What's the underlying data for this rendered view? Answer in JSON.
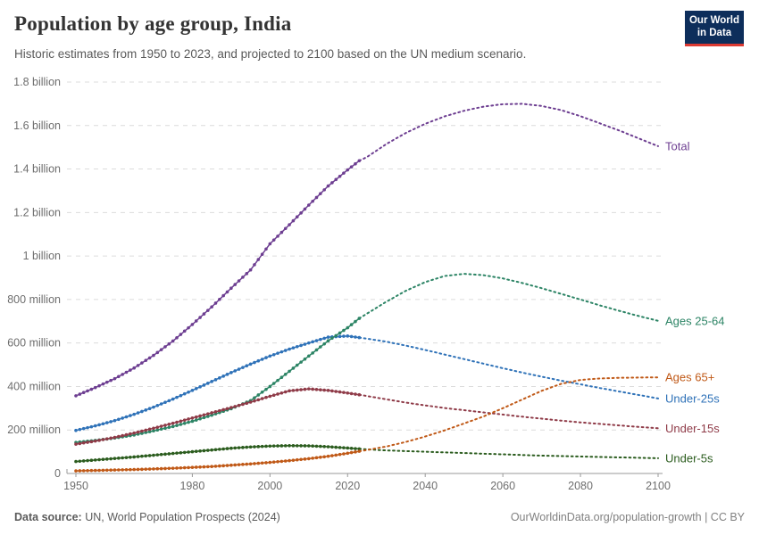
{
  "header": {
    "title": "Population by age group, India",
    "subtitle": "Historic estimates from 1950 to 2023, and projected to 2100 based on the UN medium scenario.",
    "logo_line1": "Our World",
    "logo_line2": "in Data",
    "logo_bg": "#0d2e5b",
    "logo_accent": "#dc3a32"
  },
  "footer": {
    "source_label": "Data source:",
    "source_value": " UN, World Population Prospects (2024)",
    "link": "OurWorldinData.org/population-growth | CC BY"
  },
  "chart_data": {
    "type": "line",
    "title": "Population by age group, India",
    "xlabel": "",
    "ylabel": "",
    "grid": true,
    "legend_position": "right-edge-labels",
    "historic_until": 2023,
    "projection_to": 2100,
    "xlim": [
      1950,
      2100
    ],
    "ylim_millions": [
      0,
      1800
    ],
    "xticks": [
      1950,
      1980,
      2000,
      2020,
      2040,
      2060,
      2080,
      2100
    ],
    "yticks_millions": [
      0,
      200,
      400,
      600,
      800,
      1000,
      1200,
      1400,
      1600,
      1800
    ],
    "ytick_labels": [
      "0",
      "200 million",
      "400 million",
      "600 million",
      "800 million",
      "1 billion",
      "1.2 billion",
      "1.4 billion",
      "1.6 billion",
      "1.8 billion"
    ],
    "years": [
      1950,
      1955,
      1960,
      1965,
      1970,
      1975,
      1980,
      1985,
      1990,
      1995,
      2000,
      2005,
      2010,
      2015,
      2020,
      2023,
      2025,
      2030,
      2035,
      2040,
      2045,
      2050,
      2055,
      2060,
      2065,
      2070,
      2075,
      2080,
      2085,
      2090,
      2095,
      2100
    ],
    "unit": "people (millions)",
    "series": [
      {
        "name": "Under-25s",
        "color": "#2f72b8",
        "values_millions": [
          198,
          219,
          243,
          272,
          305,
          342,
          382,
          423,
          464,
          503,
          540,
          572,
          600,
          627,
          632,
          625,
          620,
          606,
          588,
          568,
          547,
          526,
          505,
          484,
          464,
          445,
          427,
          410,
          393,
          377,
          361,
          345
        ]
      },
      {
        "name": "Ages 25-64",
        "color": "#2c8465",
        "values_millions": [
          143,
          152,
          163,
          177,
          196,
          216,
          240,
          268,
          298,
          335,
          400,
          470,
          540,
          610,
          670,
          713,
          735,
          790,
          840,
          880,
          908,
          918,
          912,
          897,
          876,
          852,
          826,
          800,
          773,
          748,
          724,
          702
        ]
      },
      {
        "name": "Under-15s",
        "color": "#8f3b48",
        "values_millions": [
          135,
          149,
          166,
          186,
          208,
          231,
          255,
          279,
          303,
          328,
          355,
          380,
          389,
          382,
          370,
          362,
          356,
          341,
          326,
          313,
          301,
          291,
          281,
          271,
          261,
          252,
          243,
          235,
          228,
          221,
          214,
          208
        ]
      },
      {
        "name": "Under-5s",
        "color": "#2b5c1e",
        "values_millions": [
          55,
          62,
          69,
          76,
          84,
          92,
          100,
          108,
          116,
          122,
          126,
          128,
          127,
          123,
          117,
          113,
          111,
          106,
          103,
          100,
          97,
          94,
          91,
          88,
          85,
          82,
          80,
          78,
          76,
          74,
          72,
          70
        ]
      },
      {
        "name": "Ages 65+",
        "color": "#c05917",
        "values_millions": [
          12,
          14,
          16,
          18,
          21,
          24,
          28,
          32,
          38,
          44,
          51,
          59,
          68,
          79,
          93,
          102,
          108,
          124,
          145,
          170,
          198,
          230,
          262,
          300,
          340,
          380,
          412,
          430,
          437,
          440,
          441,
          442
        ]
      },
      {
        "name": "Total",
        "color": "#6d3e91",
        "values_millions": [
          357,
          395,
          436,
          485,
          543,
          609,
          685,
          766,
          852,
          936,
          1056,
          1144,
          1234,
          1322,
          1396,
          1438,
          1455,
          1515,
          1566,
          1608,
          1642,
          1668,
          1687,
          1698,
          1700,
          1690,
          1671,
          1643,
          1610,
          1577,
          1541,
          1505
        ]
      }
    ],
    "axis_color": "#999999",
    "gridline_color": "#dcdcdc",
    "tick_label_color": "#6e6e6e"
  }
}
